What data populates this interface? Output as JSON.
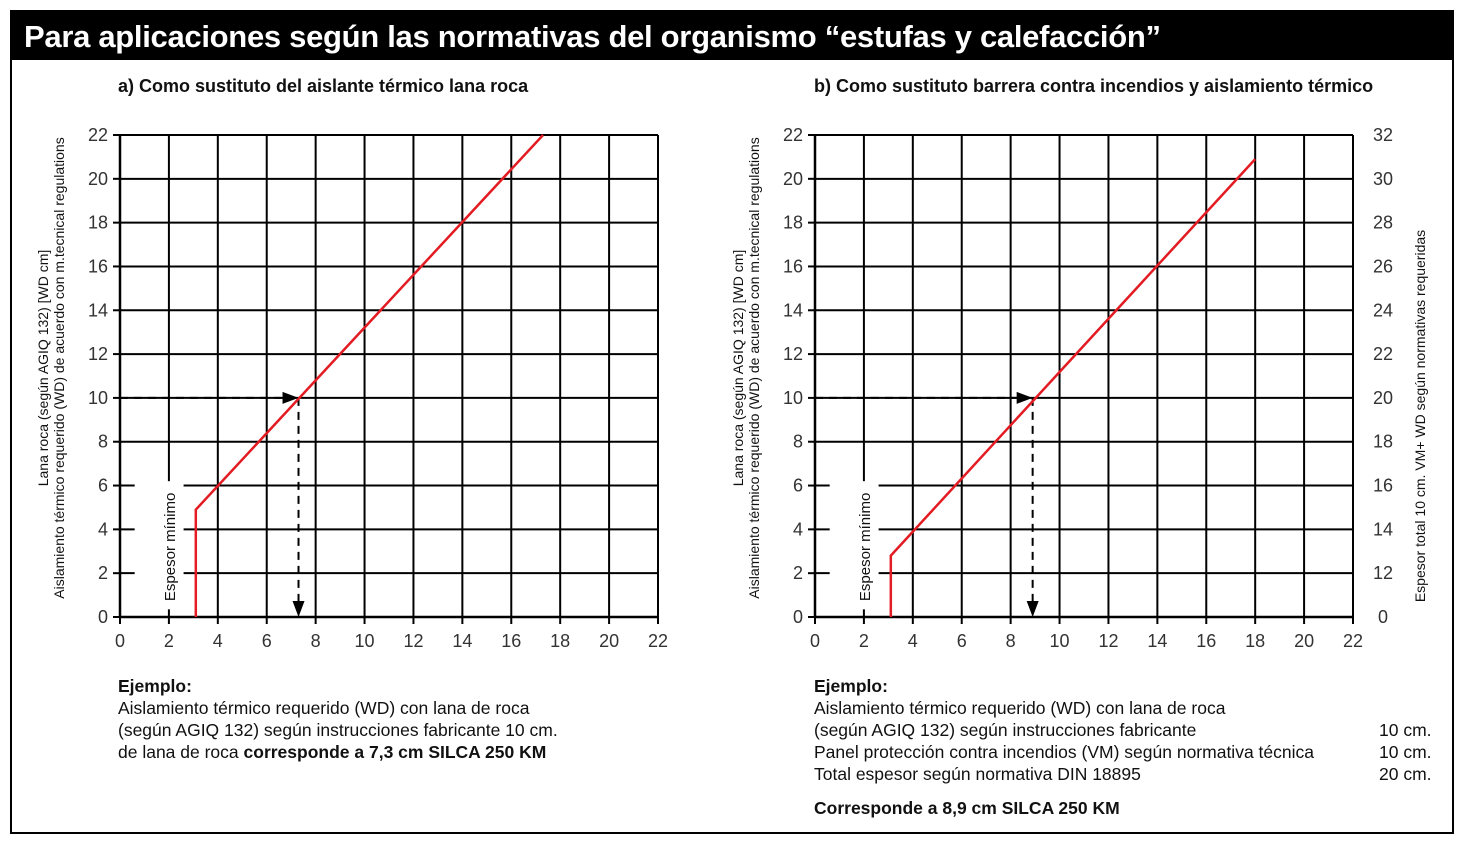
{
  "title": "Para aplicaciones según las normativas del organismo “estufas y calefacción”",
  "charts": {
    "a": {
      "title": "a) Como sustituto del aislante térmico lana roca",
      "ylabel_line1": "Lana roca (según AGIQ 132) [WD cm]",
      "ylabel_line2": "Aislamiento térmico requerido (WD) de acuerdo con m.tecnical regulations",
      "annotation": "Espesor mínimo"
    },
    "b": {
      "title": "b) Como sustituto barrera contra incendios y aislamiento térmico",
      "ylabel_line1": "Lana roca (según AGIQ 132) [WD cm]",
      "ylabel_line2": "Aislamiento térmico requerido (WD) de acuerdo con m.tecnical regulations",
      "y2label": "Espesor total 10 cm. VM+ WD según normativas requeridas",
      "annotation": "Espesor mínimo"
    }
  },
  "chart_data": [
    {
      "type": "line",
      "title": "a) Como sustituto del aislante térmico lana roca",
      "xlabel": "",
      "ylabel": "Lana roca (según AGIQ 132) [WD cm] / Aislamiento térmico requerido (WD) de acuerdo con m.tecnical regulations",
      "xlim": [
        0,
        22
      ],
      "ylim": [
        0,
        22
      ],
      "xticks": [
        0,
        2,
        4,
        6,
        8,
        10,
        12,
        14,
        16,
        18,
        20,
        22
      ],
      "yticks": [
        0,
        2,
        4,
        6,
        8,
        10,
        12,
        14,
        16,
        18,
        20,
        22
      ],
      "grid": true,
      "series": [
        {
          "x": [
            3.1,
            3.1,
            17.3
          ],
          "y": [
            0,
            4.9,
            22
          ],
          "color": "#e31b23"
        }
      ],
      "annotations": [
        {
          "text": "Espesor mínimo",
          "x": 2
        },
        {
          "type": "arrow-path",
          "from": [
            0,
            10
          ],
          "via": [
            7.3,
            10
          ],
          "to": [
            7.3,
            0
          ]
        }
      ]
    },
    {
      "type": "line",
      "title": "b) Como sustituto barrera contra incendios y aislamiento térmico",
      "xlabel": "",
      "ylabel": "Lana roca (según AGIQ 132) [WD cm] / Aislamiento térmico requerido (WD) de acuerdo con m.tecnical regulations",
      "y2label": "Espesor total 10 cm. VM+ WD según normativas requeridas",
      "xlim": [
        0,
        22
      ],
      "ylim": [
        0,
        22
      ],
      "xticks": [
        0,
        2,
        4,
        6,
        8,
        10,
        12,
        14,
        16,
        18,
        20,
        22
      ],
      "yticks": [
        0,
        2,
        4,
        6,
        8,
        10,
        12,
        14,
        16,
        18,
        20,
        22
      ],
      "y2ticks": [
        0,
        12,
        14,
        16,
        18,
        20,
        22,
        24,
        26,
        28,
        30,
        32
      ],
      "grid": true,
      "series": [
        {
          "x": [
            3.1,
            3.1,
            18
          ],
          "y": [
            0,
            2.8,
            20.9
          ],
          "color": "#e31b23"
        }
      ],
      "annotations": [
        {
          "text": "Espesor mínimo",
          "x": 2
        },
        {
          "type": "arrow-path",
          "from": [
            0,
            10
          ],
          "via": [
            8.9,
            10
          ],
          "to": [
            8.9,
            0
          ]
        }
      ]
    }
  ],
  "examples": {
    "a": {
      "heading": "Ejemplo:",
      "line1": "Aislamiento térmico requerido (WD) con lana de roca",
      "line2": "(según AGIQ 132) según instrucciones fabricante 10 cm.",
      "line3_normal": "de lana de roca ",
      "line3_bold": "corresponde a 7,3 cm SILCA 250 KM"
    },
    "b": {
      "heading": "Ejemplo:",
      "line1": "Aislamiento térmico requerido (WD) con lana de roca",
      "rows": [
        {
          "label": "(según AGIQ 132) según instrucciones fabricante",
          "value": "10 cm."
        },
        {
          "label": "Panel protección contra incendios (VM) según normativa técnica",
          "value": "10 cm."
        },
        {
          "label": "Total espesor según normativa DIN 18895",
          "value": "20 cm."
        }
      ],
      "conclusion": "Corresponde a 8,9 cm SILCA 250 KM"
    }
  },
  "colors": {
    "line": "#e31b23",
    "grid": "#000000",
    "titlebar": "#000000"
  }
}
